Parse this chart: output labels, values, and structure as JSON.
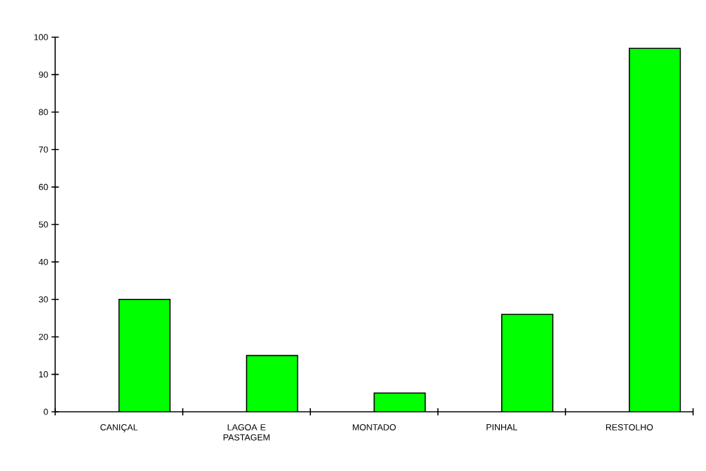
{
  "chart_data": {
    "type": "bar",
    "categories": [
      "CANIÇAL",
      "LAGOA E PASTAGEM",
      "MONTADO",
      "PINHAL",
      "RESTOLHO"
    ],
    "values": [
      30,
      15,
      5,
      26,
      97
    ],
    "color": "#00ff00",
    "ylim": [
      0,
      100
    ],
    "yticks": [
      0,
      10,
      20,
      30,
      40,
      50,
      60,
      70,
      80,
      90,
      100
    ]
  }
}
